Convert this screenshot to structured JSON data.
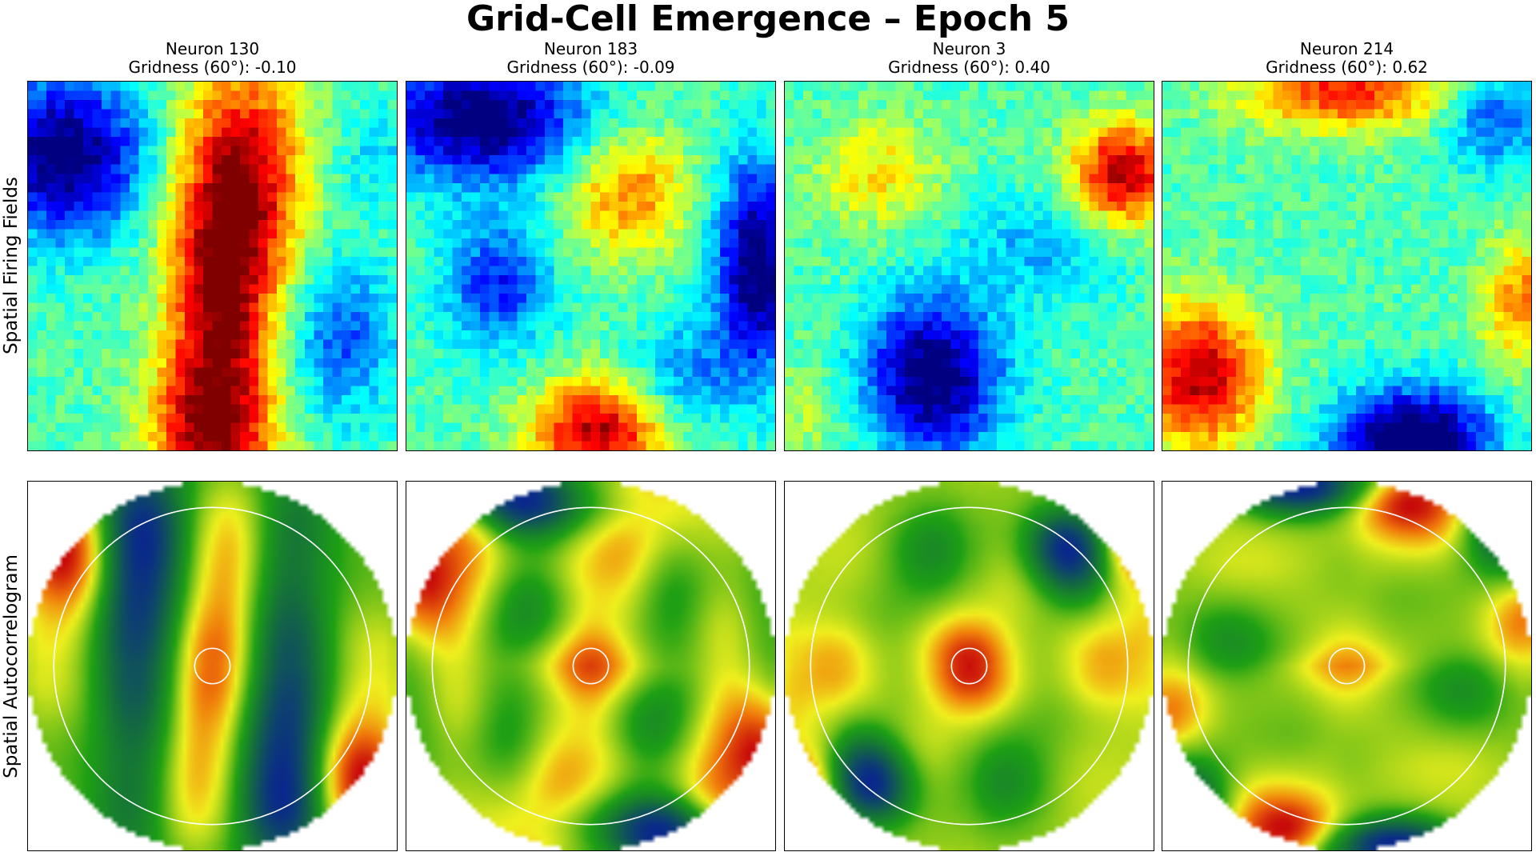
{
  "title": "Grid-Cell Emergence – Epoch 5",
  "row_labels": [
    "Spatial Firing Fields",
    "Spatial Autocorrelogram"
  ],
  "chart_data": {
    "type": "heatmap",
    "colormap_fields": "jet",
    "colormap_autocorrelogram": "blue-green-yellow-red",
    "panels": [
      {
        "neuron_label": "Neuron 130",
        "gridness_label": "Gridness (60°): -0.10",
        "neuron": 130,
        "gridness": -0.1
      },
      {
        "neuron_label": "Neuron 183",
        "gridness_label": "Gridness (60°): -0.09",
        "neuron": 183,
        "gridness": -0.09
      },
      {
        "neuron_label": "Neuron 3",
        "gridness_label": "Gridness (60°): 0.40",
        "neuron": 3,
        "gridness": 0.4
      },
      {
        "neuron_label": "Neuron 214",
        "gridness_label": "Gridness (60°): 0.62",
        "neuron": 214,
        "gridness": 0.62
      }
    ],
    "grid": false,
    "axes_ticks": false
  }
}
